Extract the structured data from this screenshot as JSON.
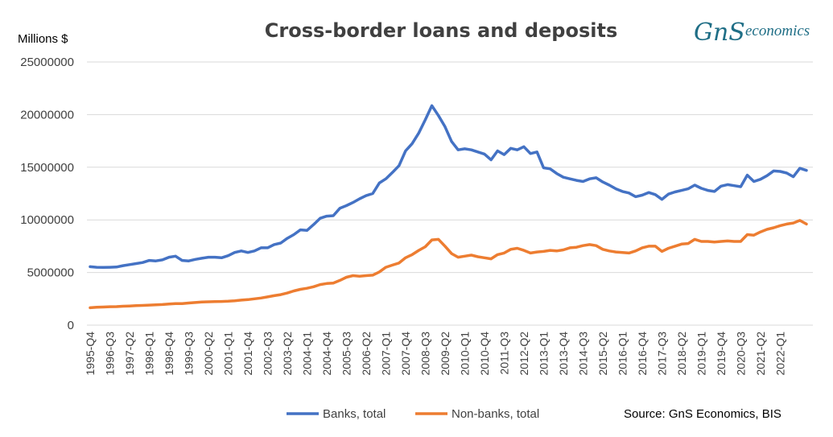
{
  "chart_data": {
    "type": "line",
    "title": "Cross-border loans and deposits",
    "ylabel": "Millions $",
    "ylim": [
      0,
      25000000
    ],
    "yticks": [
      "0",
      "5000000",
      "10000000",
      "15000000",
      "20000000",
      "25000000"
    ],
    "grid": "horizontal",
    "legend_position": "bottom",
    "x_start": "1995-Q4",
    "x_end": "2022-Q3",
    "x_tick_labels": [
      "1995-Q4",
      "1996-Q3",
      "1997-Q2",
      "1998-Q1",
      "1998-Q4",
      "1999-Q3",
      "2000-Q2",
      "2001-Q1",
      "2001-Q4",
      "2002-Q3",
      "2003-Q2",
      "2004-Q1",
      "2004-Q4",
      "2005-Q3",
      "2006-Q2",
      "2007-Q1",
      "2007-Q4",
      "2008-Q3",
      "2009-Q2",
      "2010-Q1",
      "2010-Q4",
      "2011-Q3",
      "2012-Q2",
      "2013-Q1",
      "2013-Q4",
      "2014-Q3",
      "2015-Q2",
      "2016-Q1",
      "2016-Q4",
      "2017-Q3",
      "2018-Q2",
      "2019-Q1",
      "2019-Q4",
      "2020-Q3",
      "2021-Q2",
      "2022-Q1"
    ],
    "series": [
      {
        "name": "Banks, total",
        "color": "#4472c4",
        "values": [
          5550000,
          5500000,
          5480000,
          5500000,
          5520000,
          5650000,
          5750000,
          5850000,
          5950000,
          6150000,
          6100000,
          6200000,
          6450000,
          6550000,
          6150000,
          6100000,
          6250000,
          6350000,
          6450000,
          6450000,
          6400000,
          6600000,
          6900000,
          7050000,
          6900000,
          7050000,
          7350000,
          7350000,
          7650000,
          7800000,
          8250000,
          8600000,
          9050000,
          9000000,
          9550000,
          10150000,
          10350000,
          10400000,
          11100000,
          11350000,
          11650000,
          12000000,
          12300000,
          12500000,
          13500000,
          13900000,
          14500000,
          15150000,
          16550000,
          17250000,
          18250000,
          19500000,
          20850000,
          19900000,
          18850000,
          17450000,
          16650000,
          16750000,
          16650000,
          16450000,
          16250000,
          15700000,
          16550000,
          16200000,
          16800000,
          16650000,
          16950000,
          16300000,
          16450000,
          14950000,
          14850000,
          14400000,
          14050000,
          13900000,
          13750000,
          13650000,
          13900000,
          14000000,
          13600000,
          13300000,
          12950000,
          12700000,
          12550000,
          12200000,
          12350000,
          12600000,
          12400000,
          11950000,
          12450000,
          12650000,
          12800000,
          12950000,
          13300000,
          13000000,
          12800000,
          12700000,
          13200000,
          13350000,
          13250000,
          13150000,
          14250000,
          13650000,
          13850000,
          14200000,
          14650000,
          14600000,
          14450000,
          14100000,
          14900000,
          14700000
        ]
      },
      {
        "name": "Non-banks, total",
        "color": "#ed7d31",
        "values": [
          1650000,
          1700000,
          1720000,
          1750000,
          1760000,
          1800000,
          1820000,
          1850000,
          1870000,
          1900000,
          1930000,
          1960000,
          2000000,
          2050000,
          2050000,
          2100000,
          2150000,
          2200000,
          2220000,
          2230000,
          2250000,
          2270000,
          2320000,
          2380000,
          2420000,
          2500000,
          2580000,
          2680000,
          2800000,
          2900000,
          3050000,
          3250000,
          3400000,
          3500000,
          3650000,
          3850000,
          3950000,
          4000000,
          4250000,
          4550000,
          4700000,
          4650000,
          4700000,
          4750000,
          5050000,
          5500000,
          5700000,
          5900000,
          6400000,
          6700000,
          7100000,
          7450000,
          8100000,
          8150000,
          7500000,
          6800000,
          6450000,
          6550000,
          6650000,
          6500000,
          6400000,
          6300000,
          6700000,
          6850000,
          7200000,
          7300000,
          7100000,
          6850000,
          6950000,
          7000000,
          7100000,
          7050000,
          7150000,
          7350000,
          7400000,
          7550000,
          7650000,
          7550000,
          7200000,
          7050000,
          6950000,
          6900000,
          6850000,
          7050000,
          7350000,
          7500000,
          7500000,
          7000000,
          7300000,
          7500000,
          7700000,
          7750000,
          8150000,
          7950000,
          7950000,
          7900000,
          7950000,
          8000000,
          7950000,
          7950000,
          8600000,
          8550000,
          8850000,
          9100000,
          9250000,
          9450000,
          9600000,
          9700000,
          9950000,
          9600000
        ]
      }
    ],
    "source": "Source: GnS Economics, BIS",
    "logo": {
      "mark": "GnS",
      "word": "economics",
      "color": "#1f6e86"
    }
  }
}
